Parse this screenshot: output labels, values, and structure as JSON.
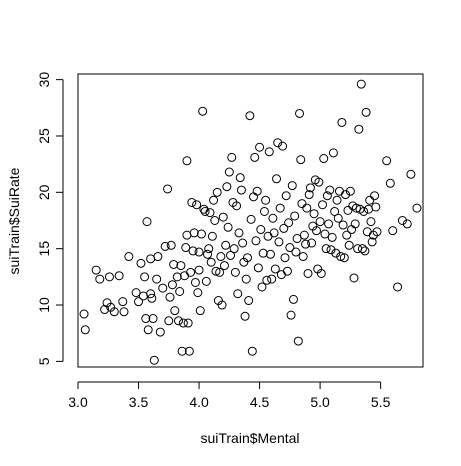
{
  "chart_data": {
    "type": "scatter",
    "title": "",
    "xlabel": "suiTrain$Mental",
    "ylabel": "suiTrain$SuiRate",
    "xlim": [
      3.0,
      5.85
    ],
    "ylim": [
      4.5,
      30.5
    ],
    "xticks": [
      "3.0",
      "3.5",
      "4.0",
      "4.5",
      "5.0",
      "5.5"
    ],
    "yticks": [
      "5",
      "10",
      "15",
      "20",
      "25",
      "30"
    ],
    "grid": false,
    "marker": "open-circle",
    "points": [
      [
        3.05,
        9.2
      ],
      [
        3.06,
        7.8
      ],
      [
        3.15,
        13.1
      ],
      [
        3.18,
        12.3
      ],
      [
        3.22,
        9.6
      ],
      [
        3.24,
        10.2
      ],
      [
        3.26,
        12.5
      ],
      [
        3.27,
        9.8
      ],
      [
        3.3,
        9.4
      ],
      [
        3.34,
        12.6
      ],
      [
        3.37,
        10.3
      ],
      [
        3.38,
        9.4
      ],
      [
        3.42,
        14.3
      ],
      [
        3.48,
        11.1
      ],
      [
        3.5,
        10.3
      ],
      [
        3.52,
        13.7
      ],
      [
        3.54,
        10.8
      ],
      [
        3.55,
        12.5
      ],
      [
        3.56,
        8.8
      ],
      [
        3.57,
        17.4
      ],
      [
        3.58,
        7.8
      ],
      [
        3.6,
        14.1
      ],
      [
        3.6,
        11.0
      ],
      [
        3.61,
        10.6
      ],
      [
        3.62,
        8.8
      ],
      [
        3.63,
        5.1
      ],
      [
        3.65,
        12.3
      ],
      [
        3.66,
        14.3
      ],
      [
        3.68,
        7.6
      ],
      [
        3.7,
        11.5
      ],
      [
        3.72,
        15.2
      ],
      [
        3.74,
        20.3
      ],
      [
        3.75,
        8.6
      ],
      [
        3.76,
        10.7
      ],
      [
        3.77,
        15.3
      ],
      [
        3.78,
        11.8
      ],
      [
        3.79,
        13.6
      ],
      [
        3.8,
        9.5
      ],
      [
        3.82,
        12.5
      ],
      [
        3.83,
        8.6
      ],
      [
        3.84,
        11.2
      ],
      [
        3.85,
        13.5
      ],
      [
        3.86,
        5.9
      ],
      [
        3.87,
        8.4
      ],
      [
        3.88,
        12.6
      ],
      [
        3.89,
        15.1
      ],
      [
        3.9,
        22.8
      ],
      [
        3.9,
        16.2
      ],
      [
        3.91,
        8.4
      ],
      [
        3.92,
        5.9
      ],
      [
        3.93,
        12.9
      ],
      [
        3.94,
        19.1
      ],
      [
        3.95,
        14.8
      ],
      [
        3.96,
        16.4
      ],
      [
        3.97,
        12.0
      ],
      [
        3.98,
        18.9
      ],
      [
        3.99,
        11.1
      ],
      [
        4.0,
        14.7
      ],
      [
        4.0,
        13.1
      ],
      [
        4.01,
        9.5
      ],
      [
        4.02,
        16.3
      ],
      [
        4.03,
        27.2
      ],
      [
        4.04,
        18.5
      ],
      [
        4.05,
        18.3
      ],
      [
        4.06,
        12.1
      ],
      [
        4.07,
        14.5
      ],
      [
        4.08,
        15.0
      ],
      [
        4.09,
        18.2
      ],
      [
        4.1,
        13.8
      ],
      [
        4.11,
        16.1
      ],
      [
        4.12,
        19.3
      ],
      [
        4.13,
        17.5
      ],
      [
        4.14,
        13.0
      ],
      [
        4.15,
        20.0
      ],
      [
        4.16,
        10.4
      ],
      [
        4.17,
        12.9
      ],
      [
        4.18,
        14.3
      ],
      [
        4.19,
        10.0
      ],
      [
        4.2,
        17.8
      ],
      [
        4.21,
        13.5
      ],
      [
        4.22,
        15.3
      ],
      [
        4.23,
        20.5
      ],
      [
        4.24,
        16.9
      ],
      [
        4.25,
        21.8
      ],
      [
        4.26,
        14.4
      ],
      [
        4.27,
        23.1
      ],
      [
        4.28,
        19.1
      ],
      [
        4.29,
        15.0
      ],
      [
        4.3,
        12.9
      ],
      [
        4.31,
        18.8
      ],
      [
        4.32,
        11.0
      ],
      [
        4.33,
        16.4
      ],
      [
        4.34,
        21.3
      ],
      [
        4.35,
        20.2
      ],
      [
        4.36,
        15.5
      ],
      [
        4.37,
        13.8
      ],
      [
        4.38,
        9.0
      ],
      [
        4.39,
        12.3
      ],
      [
        4.4,
        14.2
      ],
      [
        4.41,
        10.4
      ],
      [
        4.42,
        26.8
      ],
      [
        4.43,
        17.6
      ],
      [
        4.44,
        5.9
      ],
      [
        4.45,
        19.6
      ],
      [
        4.46,
        23.1
      ],
      [
        4.47,
        15.7
      ],
      [
        4.48,
        20.1
      ],
      [
        4.49,
        13.3
      ],
      [
        4.5,
        24.0
      ],
      [
        4.51,
        16.7
      ],
      [
        4.52,
        11.6
      ],
      [
        4.53,
        14.6
      ],
      [
        4.54,
        18.3
      ],
      [
        4.55,
        19.3
      ],
      [
        4.56,
        12.2
      ],
      [
        4.57,
        16.1
      ],
      [
        4.58,
        23.6
      ],
      [
        4.59,
        14.5
      ],
      [
        4.6,
        12.3
      ],
      [
        4.61,
        17.7
      ],
      [
        4.62,
        16.4
      ],
      [
        4.63,
        13.2
      ],
      [
        4.64,
        21.2
      ],
      [
        4.65,
        24.4
      ],
      [
        4.66,
        15.6
      ],
      [
        4.67,
        18.6
      ],
      [
        4.68,
        12.7
      ],
      [
        4.69,
        24.1
      ],
      [
        4.7,
        16.8
      ],
      [
        4.71,
        14.2
      ],
      [
        4.72,
        19.7
      ],
      [
        4.73,
        13.0
      ],
      [
        4.74,
        17.3
      ],
      [
        4.75,
        15.1
      ],
      [
        4.76,
        9.1
      ],
      [
        4.77,
        20.6
      ],
      [
        4.78,
        10.5
      ],
      [
        4.79,
        17.9
      ],
      [
        4.8,
        14.7
      ],
      [
        4.81,
        15.9
      ],
      [
        4.82,
        6.8
      ],
      [
        4.83,
        27.0
      ],
      [
        4.84,
        22.9
      ],
      [
        4.85,
        19.0
      ],
      [
        4.86,
        14.3
      ],
      [
        4.87,
        16.2
      ],
      [
        4.88,
        15.4
      ],
      [
        4.89,
        18.6
      ],
      [
        4.9,
        12.8
      ],
      [
        4.91,
        19.8
      ],
      [
        4.92,
        20.4
      ],
      [
        4.93,
        15.5
      ],
      [
        4.94,
        17.0
      ],
      [
        4.95,
        18.1
      ],
      [
        4.96,
        21.1
      ],
      [
        4.97,
        16.6
      ],
      [
        4.98,
        13.2
      ],
      [
        4.99,
        20.9
      ],
      [
        5.0,
        17.4
      ],
      [
        5.01,
        12.8
      ],
      [
        5.02,
        18.9
      ],
      [
        5.03,
        23.0
      ],
      [
        5.04,
        16.3
      ],
      [
        5.05,
        15.0
      ],
      [
        5.06,
        19.7
      ],
      [
        5.07,
        17.2
      ],
      [
        5.08,
        20.2
      ],
      [
        5.09,
        14.9
      ],
      [
        5.1,
        16.0
      ],
      [
        5.11,
        23.5
      ],
      [
        5.12,
        18.3
      ],
      [
        5.13,
        14.6
      ],
      [
        5.14,
        19.3
      ],
      [
        5.15,
        17.7
      ],
      [
        5.16,
        20.1
      ],
      [
        5.17,
        14.3
      ],
      [
        5.18,
        26.2
      ],
      [
        5.19,
        17.1
      ],
      [
        5.2,
        14.2
      ],
      [
        5.21,
        19.8
      ],
      [
        5.22,
        16.2
      ],
      [
        5.23,
        18.4
      ],
      [
        5.24,
        15.3
      ],
      [
        5.25,
        20.1
      ],
      [
        5.26,
        16.7
      ],
      [
        5.27,
        18.8
      ],
      [
        5.28,
        12.4
      ],
      [
        5.29,
        17.2
      ],
      [
        5.3,
        18.6
      ],
      [
        5.31,
        15.0
      ],
      [
        5.32,
        25.6
      ],
      [
        5.33,
        18.5
      ],
      [
        5.34,
        29.6
      ],
      [
        5.35,
        15.0
      ],
      [
        5.36,
        18.3
      ],
      [
        5.37,
        14.8
      ],
      [
        5.38,
        27.1
      ],
      [
        5.39,
        16.5
      ],
      [
        5.4,
        18.5
      ],
      [
        5.41,
        19.3
      ],
      [
        5.42,
        17.4
      ],
      [
        5.43,
        15.6
      ],
      [
        5.44,
        16.2
      ],
      [
        5.45,
        19.7
      ],
      [
        5.46,
        18.7
      ],
      [
        5.47,
        16.5
      ],
      [
        5.55,
        22.8
      ],
      [
        5.58,
        20.8
      ],
      [
        5.6,
        16.6
      ],
      [
        5.64,
        11.6
      ],
      [
        5.68,
        17.5
      ],
      [
        5.72,
        17.2
      ],
      [
        5.75,
        21.6
      ],
      [
        5.8,
        18.6
      ]
    ]
  }
}
